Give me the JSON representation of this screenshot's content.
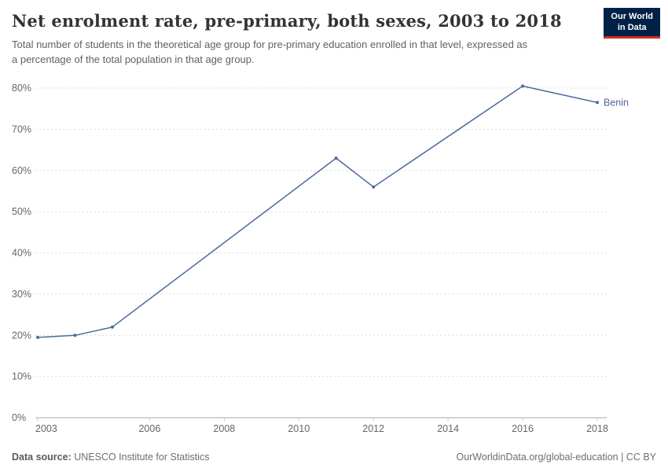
{
  "header": {
    "title": "Net enrolment rate, pre-primary, both sexes, 2003 to 2018",
    "subtitle": "Total number of students in the theoretical age group for pre-primary education enrolled in that level, expressed as a percentage of the total population in that age group."
  },
  "logo": {
    "line1": "Our World",
    "line2": "in Data",
    "bg_color": "#002147",
    "accent_color": "#d42b21"
  },
  "chart_data": {
    "type": "line",
    "title": "Net enrolment rate, pre-primary, both sexes, 2003 to 2018",
    "xlabel": "",
    "ylabel": "",
    "xlim": [
      2003,
      2018
    ],
    "ylim": [
      0,
      80
    ],
    "xticks": [
      2003,
      2006,
      2008,
      2010,
      2012,
      2014,
      2016,
      2018
    ],
    "yticks": [
      0,
      10,
      20,
      30,
      40,
      50,
      60,
      70,
      80
    ],
    "ytick_suffix": "%",
    "grid": "horizontal-dashed",
    "legend_position": "end-of-line-label",
    "series": [
      {
        "name": "Benin",
        "color": "#4c6a9c",
        "points": [
          [
            2003,
            19.5
          ],
          [
            2004,
            20
          ],
          [
            2005,
            22
          ],
          [
            2011,
            63
          ],
          [
            2012,
            56
          ],
          [
            2016,
            80.5
          ],
          [
            2018,
            76.5
          ]
        ]
      }
    ]
  },
  "footer": {
    "source_label": "Data source:",
    "source_value": "UNESCO Institute for Statistics",
    "credit": "OurWorldinData.org/global-education | CC BY"
  }
}
